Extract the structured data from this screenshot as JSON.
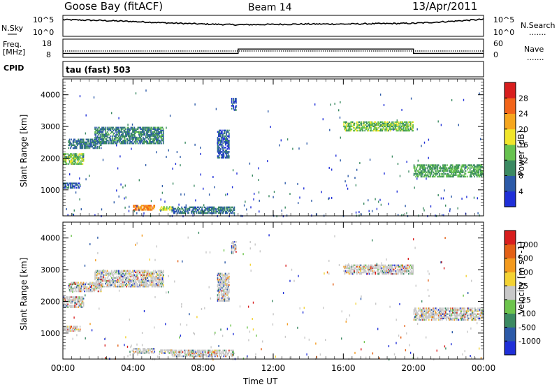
{
  "header": {
    "station": "Goose Bay (fitACF)",
    "beam": "Beam 14",
    "date": "13/Apr/2011"
  },
  "labels": {
    "nsky": "N.Sky",
    "nsearch": "N.Search",
    "freq_top": "Freq.",
    "freq_unit": "[MHz]",
    "cpid": "CPID",
    "nave": "Nave",
    "cpid_value": "tau (fast) 503",
    "dots": "......."
  },
  "colors": {
    "power": [
      "#1f2fd8",
      "#2c5aa8",
      "#3b8a62",
      "#67c24f",
      "#f1e52a",
      "#f6a61e",
      "#f26419",
      "#d81e1e"
    ],
    "velocity": [
      "#1f2fd8",
      "#2c5aa8",
      "#3b8a62",
      "#6dc44d",
      "#c8c8c8",
      "#f3d233",
      "#f39a1e",
      "#e36016",
      "#d81e1e"
    ],
    "velocity_gray": "#c8c8c8"
  },
  "chart_data": [
    {
      "type": "line",
      "name": "N.Sky / N.Search",
      "ylabel_left": "N.Sky",
      "ylabel_right": "N.Search",
      "yticks_left": [
        "10^5",
        "10^0"
      ],
      "yticks_right": [
        "10^5",
        "10^0"
      ],
      "x": [
        "00:00",
        "02:00",
        "04:00",
        "06:00",
        "08:00",
        "10:00",
        "12:00",
        "14:00",
        "16:00",
        "18:00",
        "20:00",
        "22:00",
        "24:00"
      ],
      "nsky_log": [
        4.2,
        4.0,
        3.7,
        3.3,
        3.0,
        2.8,
        2.9,
        3.0,
        3.0,
        3.1,
        3.2,
        3.7,
        4.3
      ]
    },
    {
      "type": "line",
      "name": "Freq / Nave",
      "ylabel_left": "Freq. [MHz]",
      "ylabel_right": "Nave",
      "yticks_left": [
        "18",
        "8"
      ],
      "yticks_right": [
        "60",
        "0"
      ],
      "freq_steps": [
        {
          "start": "00:00",
          "end": "10:00",
          "mhz": 10.0
        },
        {
          "start": "10:00",
          "end": "20:00",
          "mhz": 12.7
        },
        {
          "start": "20:00",
          "end": "24:00",
          "mhz": 10.0
        }
      ],
      "nave": 18
    },
    {
      "type": "heatmap",
      "name": "Power",
      "colorbar_label": "Power [dB]",
      "colorbar_ticks": [
        "28",
        "24",
        "20",
        "16",
        "12",
        "8",
        "4"
      ],
      "ylabel": "Slant Range [km]",
      "yticks": [
        "1000",
        "2000",
        "3000",
        "4000"
      ],
      "ylim": [
        180,
        4500
      ],
      "xlim": [
        0,
        24
      ],
      "regions": [
        {
          "t0": 0.0,
          "t1": 1.2,
          "r0": 1800,
          "r1": 2150,
          "power": 14
        },
        {
          "t0": 0.0,
          "t1": 1.0,
          "r0": 1050,
          "r1": 1200,
          "power": 6
        },
        {
          "t0": 0.3,
          "t1": 2.2,
          "r0": 2300,
          "r1": 2600,
          "power": 8
        },
        {
          "t0": 1.8,
          "t1": 5.7,
          "r0": 2450,
          "r1": 2950,
          "power": 9
        },
        {
          "t0": 4.0,
          "t1": 5.2,
          "r0": 350,
          "r1": 500,
          "power": 24
        },
        {
          "t0": 5.5,
          "t1": 6.2,
          "r0": 350,
          "r1": 480,
          "power": 16
        },
        {
          "t0": 6.2,
          "t1": 9.8,
          "r0": 250,
          "r1": 450,
          "power": 8
        },
        {
          "t0": 8.8,
          "t1": 9.5,
          "r0": 2000,
          "r1": 2900,
          "power": 6
        },
        {
          "t0": 9.6,
          "t1": 9.9,
          "r0": 3500,
          "r1": 3900,
          "power": 6
        },
        {
          "t0": 16.0,
          "t1": 20.0,
          "r0": 2850,
          "r1": 3150,
          "power": 14
        },
        {
          "t0": 20.0,
          "t1": 24.0,
          "r0": 1400,
          "r1": 1800,
          "power": 12
        }
      ]
    },
    {
      "type": "heatmap",
      "name": "Velocity",
      "colorbar_label": "Velocity [m s^-1]",
      "colorbar_ticks": [
        "1000",
        "500",
        "100",
        "25",
        "-25",
        "-100",
        "-500",
        "-1000"
      ],
      "ylabel": "Slant Range [km]",
      "yticks": [
        "1000",
        "2000",
        "3000",
        "4000"
      ],
      "ylim": [
        180,
        4500
      ],
      "xlim": [
        0,
        24
      ],
      "xticks": [
        "00:00",
        "04:00",
        "08:00",
        "12:00",
        "16:00",
        "20:00",
        "00:00"
      ],
      "xlabel": "Time UT"
    }
  ]
}
